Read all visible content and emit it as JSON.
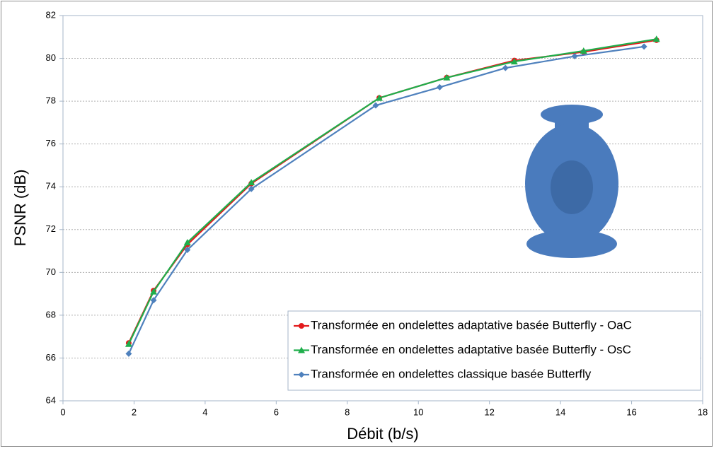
{
  "chart_data": {
    "type": "line",
    "x_label": "Débit (b/s)",
    "y_label": "PSNR (dB)",
    "xlim": [
      0,
      18
    ],
    "xticks": [
      0,
      2,
      4,
      6,
      8,
      10,
      12,
      14,
      16,
      18
    ],
    "ylim": [
      64,
      82
    ],
    "yticks": [
      64,
      66,
      68,
      70,
      72,
      74,
      76,
      78,
      80,
      82
    ],
    "grid": true,
    "legend_position": "lower right",
    "series": [
      {
        "name": "Transformée en ondelettes adaptative basée Butterfly - OaC",
        "color": "#e31a1c",
        "marker": "circle",
        "x": [
          1.85,
          2.55,
          3.5,
          5.3,
          8.9,
          10.8,
          12.7,
          14.65,
          16.7
        ],
        "values": [
          66.7,
          69.15,
          71.3,
          74.15,
          78.15,
          79.1,
          79.9,
          80.3,
          80.85
        ]
      },
      {
        "name": "Transformée en ondelettes adaptative basée Butterfly - OsC",
        "color": "#1fae4b",
        "marker": "triangle",
        "x": [
          1.85,
          2.55,
          3.5,
          5.3,
          8.9,
          10.8,
          12.7,
          14.65,
          16.7
        ],
        "values": [
          66.65,
          69.1,
          71.4,
          74.2,
          78.15,
          79.1,
          79.85,
          80.35,
          80.9
        ]
      },
      {
        "name": "Transformée en ondelettes classique basée Butterfly",
        "color": "#4f81bd",
        "marker": "diamond",
        "x": [
          1.85,
          2.55,
          3.5,
          5.3,
          8.8,
          10.6,
          12.45,
          14.4,
          16.35
        ],
        "values": [
          66.2,
          68.7,
          71.05,
          73.9,
          77.8,
          78.65,
          79.55,
          80.1,
          80.55
        ]
      }
    ]
  }
}
